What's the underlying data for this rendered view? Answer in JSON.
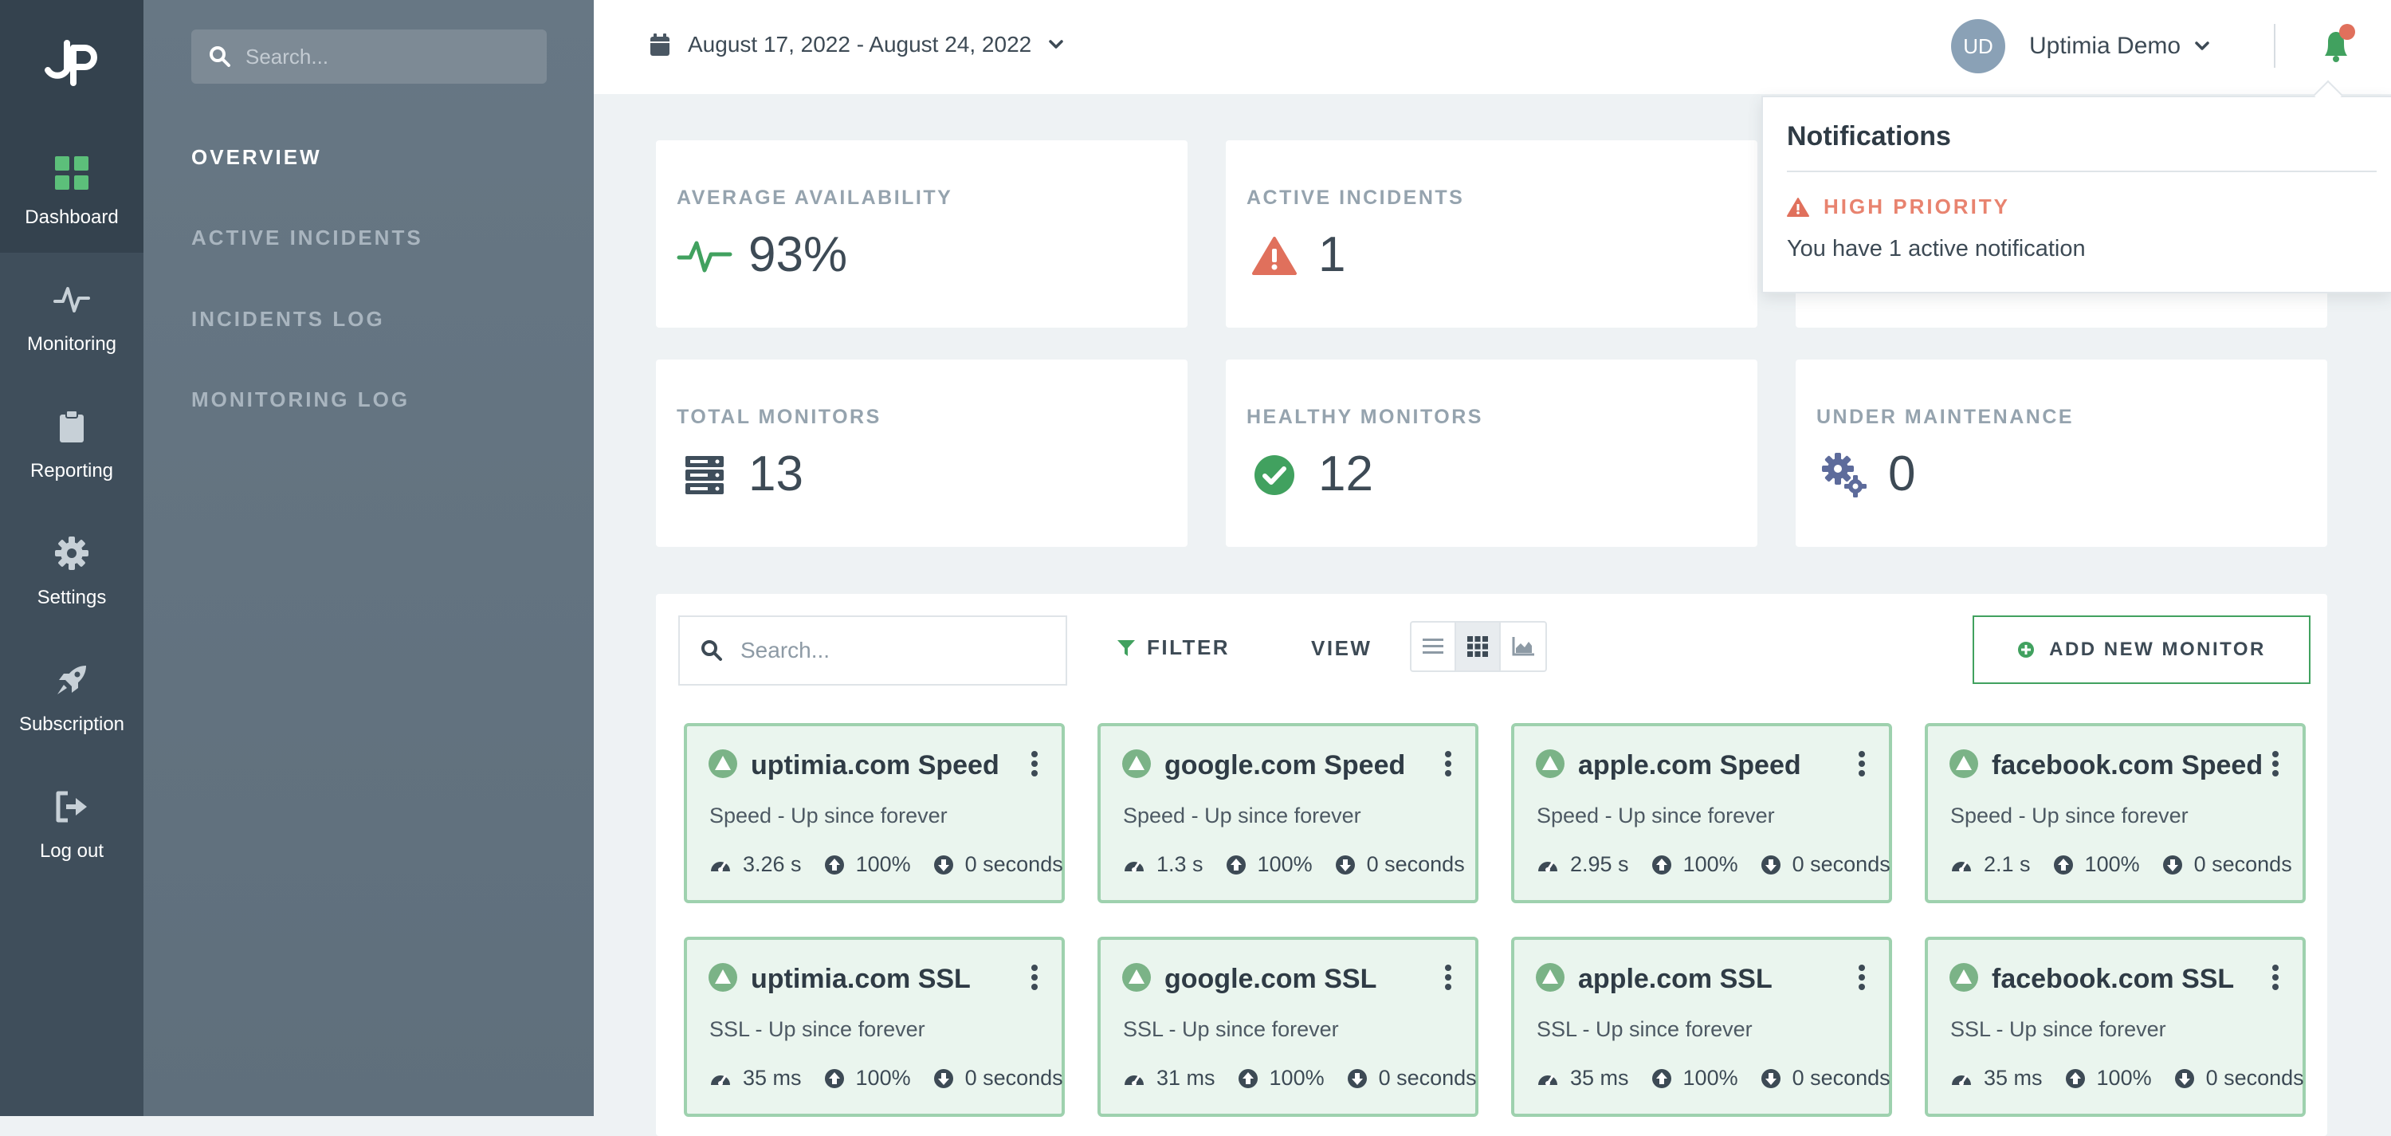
{
  "colors": {
    "accent_green": "#41a15f",
    "alert_red": "#e0705c",
    "rail_bg": "#3f4e5b",
    "subnav_bg": "#647481"
  },
  "sidebar": {
    "logo_icon": "uptimia-logo-icon",
    "items": [
      {
        "label": "Dashboard",
        "icon": "dashboard-icon",
        "active": true
      },
      {
        "label": "Monitoring",
        "icon": "pulse-icon",
        "active": false
      },
      {
        "label": "Reporting",
        "icon": "clipboard-icon",
        "active": false
      },
      {
        "label": "Settings",
        "icon": "gear-icon",
        "active": false
      },
      {
        "label": "Subscription",
        "icon": "rocket-icon",
        "active": false
      },
      {
        "label": "Log out",
        "icon": "logout-icon",
        "active": false
      }
    ]
  },
  "subnav": {
    "search_placeholder": "Search...",
    "links": [
      {
        "label": "OVERVIEW",
        "active": true
      },
      {
        "label": "ACTIVE INCIDENTS",
        "active": false
      },
      {
        "label": "INCIDENTS LOG",
        "active": false
      },
      {
        "label": "MONITORING LOG",
        "active": false
      }
    ]
  },
  "header": {
    "date_range": "August 17, 2022 - August 24, 2022",
    "user_initials": "UD",
    "user_name": "Uptimia Demo"
  },
  "stats": [
    {
      "label": "AVERAGE AVAILABILITY",
      "value": "93%",
      "icon": "pulse-icon"
    },
    {
      "label": "ACTIVE INCIDENTS",
      "value": "1",
      "icon": "warning-icon"
    },
    {
      "label": "TOTAL MONITORS",
      "value": "13",
      "icon": "server-icon"
    },
    {
      "label": "HEALTHY MONITORS",
      "value": "12",
      "icon": "check-circle-icon"
    },
    {
      "label": "UNDER MAINTENANCE",
      "value": "0",
      "icon": "gears-icon"
    }
  ],
  "monitors_toolbar": {
    "search_placeholder": "Search...",
    "filter_label": "FILTER",
    "view_label": "VIEW",
    "view_modes": [
      "list",
      "grid",
      "chart"
    ],
    "active_view": "grid",
    "add_label": "ADD NEW MONITOR"
  },
  "monitors": [
    {
      "name": "uptimia.com Speed",
      "status": "Speed - Up since forever",
      "response": "3.26 s",
      "uptime": "100%",
      "downtime": "0 seconds"
    },
    {
      "name": "google.com Speed",
      "status": "Speed - Up since forever",
      "response": "1.3 s",
      "uptime": "100%",
      "downtime": "0 seconds"
    },
    {
      "name": "apple.com Speed",
      "status": "Speed - Up since forever",
      "response": "2.95 s",
      "uptime": "100%",
      "downtime": "0 seconds"
    },
    {
      "name": "facebook.com Speed",
      "status": "Speed - Up since forever",
      "response": "2.1 s",
      "uptime": "100%",
      "downtime": "0 seconds"
    },
    {
      "name": "uptimia.com SSL",
      "status": "SSL - Up since forever",
      "response": "35 ms",
      "uptime": "100%",
      "downtime": "0 seconds"
    },
    {
      "name": "google.com SSL",
      "status": "SSL - Up since forever",
      "response": "31 ms",
      "uptime": "100%",
      "downtime": "0 seconds"
    },
    {
      "name": "apple.com SSL",
      "status": "SSL - Up since forever",
      "response": "35 ms",
      "uptime": "100%",
      "downtime": "0 seconds"
    },
    {
      "name": "facebook.com SSL",
      "status": "SSL - Up since forever",
      "response": "35 ms",
      "uptime": "100%",
      "downtime": "0 seconds"
    }
  ],
  "notifications": {
    "title": "Notifications",
    "priority": "HIGH PRIORITY",
    "message": "You have 1 active notification"
  }
}
